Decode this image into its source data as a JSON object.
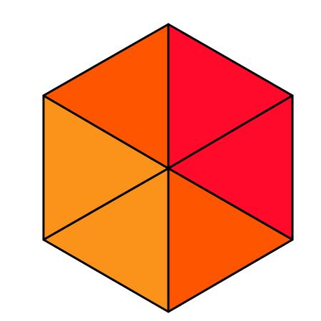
{
  "hexagon": {
    "colors": [
      "#ff0a2a",
      "#ff0a2a",
      "#fd5500",
      "#fb931a",
      "#fb931a",
      "#fd5500"
    ]
  }
}
